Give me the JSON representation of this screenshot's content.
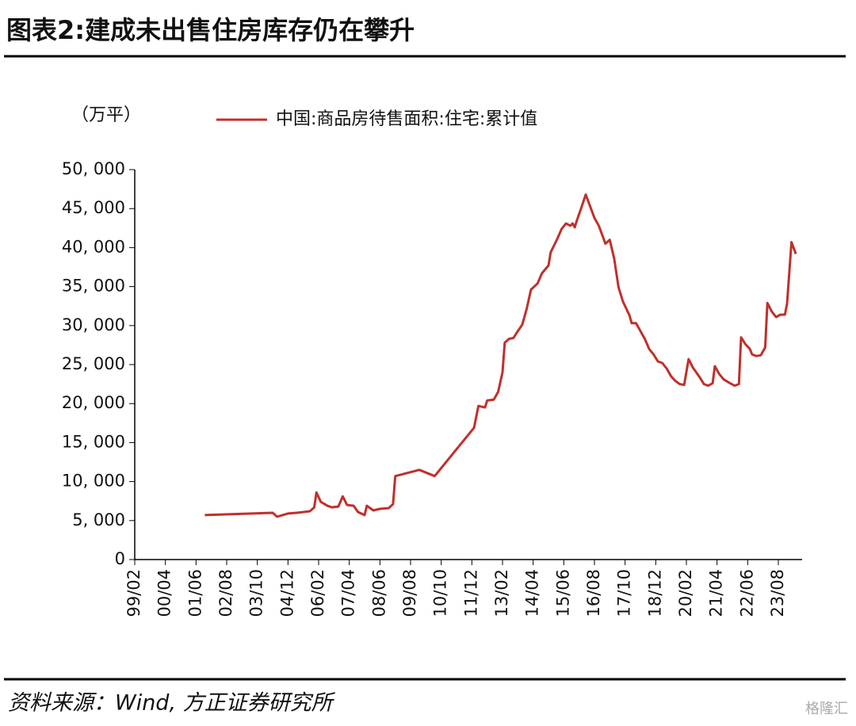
{
  "title": "图表2:建成未出售住房库存仍在攀升",
  "source": "资料来源：Wind, 方正证券研究所",
  "watermark": "格隆汇",
  "chart_data": {
    "type": "line",
    "y_unit": "（万平）",
    "x": [
      "01/10",
      "04/05",
      "04/07",
      "04/12",
      "05/04",
      "05/10",
      "05/12",
      "06/01",
      "06/03",
      "06/06",
      "06/08",
      "06/11",
      "07/01",
      "07/03",
      "07/06",
      "07/08",
      "07/11",
      "07/12",
      "08/03",
      "08/06",
      "08/10",
      "08/12",
      "09/01",
      "09/12",
      "10/07",
      "12/01",
      "12/03",
      "12/06",
      "12/07",
      "12/10",
      "12/12",
      "13/02",
      "13/03",
      "13/05",
      "13/07",
      "13/09",
      "13/11",
      "14/01",
      "14/03",
      "14/06",
      "14/08",
      "14/11",
      "14/12",
      "15/03",
      "15/05",
      "15/07",
      "15/09",
      "15/10",
      "15/11",
      "15/12",
      "16/02",
      "16/04",
      "16/06",
      "16/08",
      "16/10",
      "16/12",
      "17/01",
      "17/03",
      "17/05",
      "17/07",
      "17/09",
      "17/12",
      "18/01",
      "18/03",
      "18/05",
      "18/07",
      "18/09",
      "18/11",
      "19/01",
      "19/03",
      "19/05",
      "19/07",
      "19/09",
      "19/11",
      "20/01",
      "20/03",
      "20/05",
      "20/08",
      "20/10",
      "20/12",
      "21/02",
      "21/03",
      "21/05",
      "21/07",
      "21/10",
      "21/12",
      "22/02",
      "22/03",
      "22/05",
      "22/07",
      "22/08",
      "22/10",
      "22/12",
      "23/02",
      "23/03",
      "23/05",
      "23/07",
      "23/09",
      "23/11",
      "23/12",
      "24/02",
      "24/04"
    ],
    "series": [
      {
        "name": "中国:商品房待售面积:住宅:累计值",
        "color": "#c0302b",
        "values": [
          5700,
          6000,
          5500,
          5900,
          6000,
          6200,
          6700,
          8600,
          7400,
          6900,
          6700,
          6800,
          8100,
          7000,
          6900,
          6100,
          5700,
          6900,
          6300,
          6500,
          6600,
          7100,
          10700,
          11500,
          10700,
          16900,
          19700,
          19500,
          20400,
          20500,
          21500,
          24000,
          27800,
          28300,
          28400,
          29300,
          30100,
          32100,
          34600,
          35400,
          36700,
          37700,
          39400,
          41100,
          42400,
          43100,
          42800,
          43100,
          42600,
          43500,
          45100,
          46800,
          45300,
          43800,
          42800,
          41300,
          40500,
          41000,
          38600,
          34900,
          33100,
          31300,
          30300,
          30300,
          29300,
          28300,
          27000,
          26300,
          25400,
          25200,
          24500,
          23500,
          22900,
          22500,
          22400,
          25700,
          24600,
          23400,
          22500,
          22300,
          22600,
          24800,
          23800,
          23100,
          22600,
          22300,
          22500,
          28500,
          27600,
          27000,
          26300,
          26100,
          26200,
          27200,
          32900,
          31800,
          31100,
          31400,
          31400,
          32800,
          40700,
          39200
        ]
      }
    ],
    "xticks": [
      "99/02",
      "00/04",
      "01/06",
      "02/08",
      "03/10",
      "04/12",
      "06/02",
      "07/04",
      "08/06",
      "09/08",
      "10/10",
      "11/12",
      "13/02",
      "14/04",
      "15/06",
      "16/08",
      "17/10",
      "18/12",
      "20/02",
      "21/04",
      "22/06",
      "23/08"
    ],
    "ylim": [
      0,
      50000
    ],
    "yticks": [
      0,
      {
        "value": 5000,
        "label": "5, 000"
      },
      {
        "value": 10000,
        "label": "10, 000"
      },
      {
        "value": 15000,
        "label": "15, 000"
      },
      {
        "value": 20000,
        "label": "20, 000"
      },
      {
        "value": 25000,
        "label": "25, 000"
      },
      {
        "value": 30000,
        "label": "30, 000"
      },
      {
        "value": 35000,
        "label": "35, 000"
      },
      {
        "value": 40000,
        "label": "40, 000"
      },
      {
        "value": 45000,
        "label": "45, 000"
      },
      {
        "value": 50000,
        "label": "50, 000"
      }
    ],
    "grid": false
  }
}
